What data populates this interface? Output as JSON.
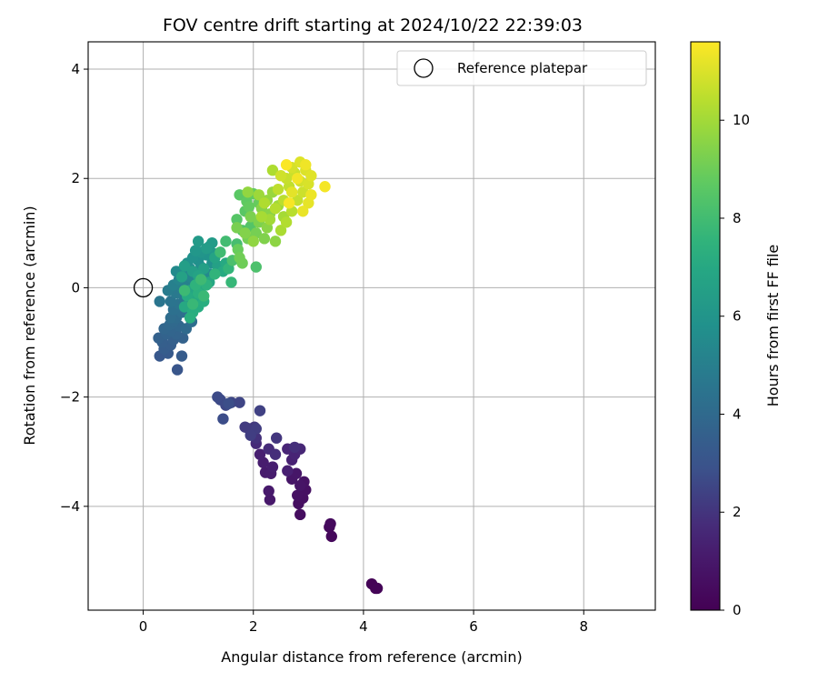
{
  "chart_data": {
    "type": "scatter",
    "title": "FOV centre drift starting at 2024/10/22 22:39:03",
    "xlabel": "Angular distance from reference (arcmin)",
    "ylabel": "Rotation from reference (arcmin)",
    "xlim": [
      -1.0,
      9.3
    ],
    "ylim": [
      -5.9,
      4.5
    ],
    "x_ticks": [
      0,
      2,
      4,
      6,
      8
    ],
    "y_ticks": [
      -4,
      -2,
      0,
      2,
      4
    ],
    "y_tick_labels": [
      "−4",
      "−2",
      "0",
      "2",
      "4"
    ],
    "grid": true,
    "legend": {
      "placement": "top-right",
      "entries": [
        {
          "label": "Reference platepar",
          "marker": "open-circle",
          "x": 0,
          "y": 0
        }
      ]
    },
    "colorbar": {
      "label": "Hours from first FF file",
      "colormap": "viridis",
      "range": [
        0,
        11.6
      ],
      "ticks": [
        0,
        2,
        4,
        6,
        8,
        10
      ]
    },
    "colors": {
      "viridis_low": "#440154",
      "viridis_mid": "#21918c",
      "viridis_high": "#fde725"
    },
    "series": [
      {
        "values": [
          {
            "x": 4.22,
            "y": -5.5,
            "t": 0.05
          },
          {
            "x": 4.15,
            "y": -5.42,
            "t": 0.1
          },
          {
            "x": 4.25,
            "y": -5.5,
            "t": 0.15
          },
          {
            "x": 3.42,
            "y": -4.55,
            "t": 0.3
          },
          {
            "x": 3.38,
            "y": -4.38,
            "t": 0.35
          },
          {
            "x": 3.4,
            "y": -4.32,
            "t": 0.4
          },
          {
            "x": 2.85,
            "y": -4.15,
            "t": 0.5
          },
          {
            "x": 2.82,
            "y": -3.95,
            "t": 0.55
          },
          {
            "x": 2.9,
            "y": -3.85,
            "t": 0.6
          },
          {
            "x": 2.95,
            "y": -3.7,
            "t": 0.65
          },
          {
            "x": 2.8,
            "y": -3.8,
            "t": 0.7
          },
          {
            "x": 2.92,
            "y": -3.55,
            "t": 0.75
          },
          {
            "x": 2.85,
            "y": -3.62,
            "t": 0.8
          },
          {
            "x": 2.7,
            "y": -3.5,
            "t": 0.85
          },
          {
            "x": 2.78,
            "y": -3.4,
            "t": 0.9
          },
          {
            "x": 2.3,
            "y": -3.88,
            "t": 1.0
          },
          {
            "x": 2.28,
            "y": -3.72,
            "t": 1.05
          },
          {
            "x": 2.22,
            "y": -3.38,
            "t": 1.1
          },
          {
            "x": 2.32,
            "y": -3.4,
            "t": 1.15
          },
          {
            "x": 2.18,
            "y": -3.2,
            "t": 1.2
          },
          {
            "x": 2.35,
            "y": -3.28,
            "t": 1.25
          },
          {
            "x": 2.12,
            "y": -3.05,
            "t": 1.3
          },
          {
            "x": 2.62,
            "y": -3.35,
            "t": 1.35
          },
          {
            "x": 2.7,
            "y": -3.15,
            "t": 1.4
          },
          {
            "x": 2.75,
            "y": -3.05,
            "t": 1.5
          },
          {
            "x": 2.62,
            "y": -2.95,
            "t": 1.55
          },
          {
            "x": 2.85,
            "y": -2.95,
            "t": 1.6
          },
          {
            "x": 2.05,
            "y": -2.85,
            "t": 1.7
          },
          {
            "x": 2.28,
            "y": -2.95,
            "t": 1.75
          },
          {
            "x": 2.4,
            "y": -3.05,
            "t": 1.8
          },
          {
            "x": 2.75,
            "y": -2.92,
            "t": 1.85
          },
          {
            "x": 2.05,
            "y": -2.75,
            "t": 1.9
          },
          {
            "x": 1.95,
            "y": -2.62,
            "t": 2.0
          },
          {
            "x": 2.42,
            "y": -2.75,
            "t": 2.05
          },
          {
            "x": 2.02,
            "y": -2.55,
            "t": 2.1
          },
          {
            "x": 1.92,
            "y": -2.58,
            "t": 2.15
          },
          {
            "x": 1.85,
            "y": -2.55,
            "t": 2.2
          },
          {
            "x": 2.05,
            "y": -2.58,
            "t": 2.25
          },
          {
            "x": 1.95,
            "y": -2.7,
            "t": 2.3
          },
          {
            "x": 2.12,
            "y": -2.25,
            "t": 2.4
          },
          {
            "x": 1.75,
            "y": -2.1,
            "t": 2.5
          },
          {
            "x": 1.6,
            "y": -2.1,
            "t": 2.55
          },
          {
            "x": 1.5,
            "y": -2.15,
            "t": 2.6
          },
          {
            "x": 1.4,
            "y": -2.05,
            "t": 2.65
          },
          {
            "x": 1.35,
            "y": -2.0,
            "t": 2.7
          },
          {
            "x": 1.45,
            "y": -2.4,
            "t": 2.75
          },
          {
            "x": 1.55,
            "y": -2.12,
            "t": 2.8
          },
          {
            "x": 0.62,
            "y": -1.5,
            "t": 3.1
          },
          {
            "x": 0.3,
            "y": -1.25,
            "t": 3.2
          },
          {
            "x": 0.45,
            "y": -1.2,
            "t": 3.3
          },
          {
            "x": 0.7,
            "y": -1.25,
            "t": 3.35
          },
          {
            "x": 0.38,
            "y": -1.12,
            "t": 3.4
          },
          {
            "x": 0.5,
            "y": -1.05,
            "t": 3.45
          },
          {
            "x": 0.35,
            "y": -1.0,
            "t": 3.5
          },
          {
            "x": 0.55,
            "y": -0.95,
            "t": 3.55
          },
          {
            "x": 0.28,
            "y": -0.92,
            "t": 3.6
          },
          {
            "x": 0.72,
            "y": -0.92,
            "t": 3.65
          },
          {
            "x": 0.42,
            "y": -0.85,
            "t": 3.7
          },
          {
            "x": 0.6,
            "y": -0.85,
            "t": 3.75
          },
          {
            "x": 0.5,
            "y": -0.78,
            "t": 3.8
          },
          {
            "x": 0.38,
            "y": -0.75,
            "t": 3.85
          },
          {
            "x": 0.65,
            "y": -0.7,
            "t": 3.9
          },
          {
            "x": 0.48,
            "y": -0.68,
            "t": 3.95
          },
          {
            "x": 0.55,
            "y": -0.62,
            "t": 4.0
          },
          {
            "x": 0.78,
            "y": -0.75,
            "t": 4.05
          },
          {
            "x": 0.6,
            "y": -0.55,
            "t": 4.1
          },
          {
            "x": 0.5,
            "y": -0.55,
            "t": 4.15
          },
          {
            "x": 0.88,
            "y": -0.62,
            "t": 4.2
          },
          {
            "x": 0.7,
            "y": -0.45,
            "t": 4.25
          },
          {
            "x": 0.55,
            "y": -0.4,
            "t": 4.3
          },
          {
            "x": 0.8,
            "y": -0.4,
            "t": 4.35
          },
          {
            "x": 0.65,
            "y": -0.3,
            "t": 4.45
          },
          {
            "x": 0.5,
            "y": -0.25,
            "t": 4.5
          },
          {
            "x": 0.3,
            "y": -0.25,
            "t": 4.55
          },
          {
            "x": 0.75,
            "y": -0.2,
            "t": 4.6
          },
          {
            "x": 0.6,
            "y": -0.1,
            "t": 4.7
          },
          {
            "x": 0.85,
            "y": -0.15,
            "t": 4.75
          },
          {
            "x": 0.45,
            "y": -0.05,
            "t": 4.8
          },
          {
            "x": 0.7,
            "y": 0.0,
            "t": 4.9
          },
          {
            "x": 0.9,
            "y": 0.02,
            "t": 5.0
          },
          {
            "x": 0.55,
            "y": 0.05,
            "t": 5.05
          },
          {
            "x": 0.78,
            "y": 0.1,
            "t": 5.1
          },
          {
            "x": 1.0,
            "y": 0.08,
            "t": 5.15
          },
          {
            "x": 0.65,
            "y": 0.15,
            "t": 5.2
          },
          {
            "x": 0.85,
            "y": 0.2,
            "t": 5.25
          },
          {
            "x": 1.1,
            "y": 0.18,
            "t": 5.3
          },
          {
            "x": 0.72,
            "y": 0.28,
            "t": 5.35
          },
          {
            "x": 0.95,
            "y": 0.28,
            "t": 5.4
          },
          {
            "x": 1.2,
            "y": 0.25,
            "t": 5.45
          },
          {
            "x": 0.6,
            "y": 0.3,
            "t": 5.5
          },
          {
            "x": 0.85,
            "y": 0.35,
            "t": 5.55
          },
          {
            "x": 1.05,
            "y": 0.38,
            "t": 5.6
          },
          {
            "x": 0.8,
            "y": 0.45,
            "t": 5.7
          },
          {
            "x": 1.0,
            "y": 0.5,
            "t": 5.75
          },
          {
            "x": 1.25,
            "y": 0.45,
            "t": 5.8
          },
          {
            "x": 0.9,
            "y": 0.55,
            "t": 5.85
          },
          {
            "x": 1.15,
            "y": 0.6,
            "t": 5.9
          },
          {
            "x": 1.05,
            "y": 0.65,
            "t": 6.0
          },
          {
            "x": 1.3,
            "y": 0.62,
            "t": 6.05
          },
          {
            "x": 0.95,
            "y": 0.68,
            "t": 6.1
          },
          {
            "x": 1.2,
            "y": 0.75,
            "t": 6.2
          },
          {
            "x": 1.0,
            "y": 0.85,
            "t": 6.25
          },
          {
            "x": 1.25,
            "y": 0.82,
            "t": 6.3
          },
          {
            "x": 1.15,
            "y": 0.72,
            "t": 6.35
          },
          {
            "x": 0.75,
            "y": 0.4,
            "t": 6.45
          },
          {
            "x": 0.9,
            "y": 0.3,
            "t": 6.5
          },
          {
            "x": 1.1,
            "y": 0.35,
            "t": 6.55
          },
          {
            "x": 1.35,
            "y": 0.4,
            "t": 6.6
          },
          {
            "x": 0.7,
            "y": 0.2,
            "t": 6.65
          },
          {
            "x": 1.0,
            "y": 0.22,
            "t": 6.7
          },
          {
            "x": 1.3,
            "y": 0.55,
            "t": 6.75
          },
          {
            "x": 0.85,
            "y": -0.05,
            "t": 6.8
          },
          {
            "x": 1.05,
            "y": 0.0,
            "t": 6.85
          },
          {
            "x": 1.2,
            "y": 0.1,
            "t": 6.9
          },
          {
            "x": 0.95,
            "y": -0.2,
            "t": 6.95
          },
          {
            "x": 0.75,
            "y": -0.35,
            "t": 7.0
          },
          {
            "x": 1.5,
            "y": 0.45,
            "t": 7.05
          },
          {
            "x": 1.45,
            "y": 0.3,
            "t": 7.1
          },
          {
            "x": 0.8,
            "y": -0.15,
            "t": 7.15
          },
          {
            "x": 1.0,
            "y": -0.35,
            "t": 7.2
          },
          {
            "x": 0.9,
            "y": -0.45,
            "t": 7.25
          },
          {
            "x": 1.1,
            "y": -0.25,
            "t": 7.3
          },
          {
            "x": 0.85,
            "y": -0.55,
            "t": 7.35
          },
          {
            "x": 1.0,
            "y": -0.1,
            "t": 7.4
          },
          {
            "x": 1.15,
            "y": 0.05,
            "t": 7.45
          },
          {
            "x": 0.95,
            "y": 0.05,
            "t": 7.5
          },
          {
            "x": 1.3,
            "y": 0.25,
            "t": 7.55
          },
          {
            "x": 1.55,
            "y": 0.35,
            "t": 7.6
          },
          {
            "x": 1.6,
            "y": 0.1,
            "t": 7.7
          },
          {
            "x": 0.9,
            "y": -0.3,
            "t": 7.75
          },
          {
            "x": 1.1,
            "y": -0.15,
            "t": 7.8
          },
          {
            "x": 0.75,
            "y": -0.05,
            "t": 7.85
          },
          {
            "x": 1.05,
            "y": 0.15,
            "t": 7.9
          },
          {
            "x": 1.4,
            "y": 0.65,
            "t": 7.95
          },
          {
            "x": 1.5,
            "y": 0.85,
            "t": 8.0
          },
          {
            "x": 1.7,
            "y": 0.8,
            "t": 8.1
          },
          {
            "x": 1.62,
            "y": 0.5,
            "t": 8.2
          },
          {
            "x": 2.05,
            "y": 0.38,
            "t": 8.25
          },
          {
            "x": 1.8,
            "y": 1.05,
            "t": 8.35
          },
          {
            "x": 1.95,
            "y": 1.12,
            "t": 8.45
          },
          {
            "x": 1.7,
            "y": 1.25,
            "t": 8.5
          },
          {
            "x": 1.85,
            "y": 1.4,
            "t": 8.55
          },
          {
            "x": 1.75,
            "y": 1.7,
            "t": 8.6
          },
          {
            "x": 1.88,
            "y": 1.58,
            "t": 8.7
          },
          {
            "x": 2.0,
            "y": 1.72,
            "t": 8.75
          },
          {
            "x": 1.92,
            "y": 1.48,
            "t": 8.8
          },
          {
            "x": 2.1,
            "y": 1.55,
            "t": 8.85
          },
          {
            "x": 1.72,
            "y": 0.7,
            "t": 8.9
          },
          {
            "x": 1.8,
            "y": 0.45,
            "t": 9.0
          },
          {
            "x": 1.75,
            "y": 0.55,
            "t": 9.05
          },
          {
            "x": 1.9,
            "y": 0.9,
            "t": 9.1
          },
          {
            "x": 2.05,
            "y": 1.0,
            "t": 9.15
          },
          {
            "x": 1.7,
            "y": 1.1,
            "t": 9.2
          },
          {
            "x": 1.95,
            "y": 1.3,
            "t": 9.25
          },
          {
            "x": 2.1,
            "y": 1.2,
            "t": 9.3
          },
          {
            "x": 2.2,
            "y": 0.9,
            "t": 9.35
          },
          {
            "x": 1.85,
            "y": 1.0,
            "t": 9.4
          },
          {
            "x": 2.15,
            "y": 1.45,
            "t": 9.45
          },
          {
            "x": 2.3,
            "y": 1.35,
            "t": 9.5
          },
          {
            "x": 2.25,
            "y": 1.1,
            "t": 9.55
          },
          {
            "x": 2.4,
            "y": 0.85,
            "t": 9.6
          },
          {
            "x": 2.0,
            "y": 0.85,
            "t": 9.65
          },
          {
            "x": 1.9,
            "y": 1.75,
            "t": 9.7
          },
          {
            "x": 2.25,
            "y": 1.6,
            "t": 9.75
          },
          {
            "x": 2.35,
            "y": 1.75,
            "t": 9.8
          },
          {
            "x": 2.1,
            "y": 1.7,
            "t": 9.9
          },
          {
            "x": 2.45,
            "y": 1.5,
            "t": 9.95
          },
          {
            "x": 2.3,
            "y": 1.25,
            "t": 10.0
          },
          {
            "x": 2.55,
            "y": 1.3,
            "t": 10.05
          },
          {
            "x": 2.15,
            "y": 1.3,
            "t": 10.1
          },
          {
            "x": 2.5,
            "y": 1.05,
            "t": 10.15
          },
          {
            "x": 2.35,
            "y": 2.15,
            "t": 10.2
          },
          {
            "x": 2.2,
            "y": 1.55,
            "t": 10.25
          },
          {
            "x": 2.6,
            "y": 1.2,
            "t": 10.3
          },
          {
            "x": 2.4,
            "y": 1.45,
            "t": 10.35
          },
          {
            "x": 2.7,
            "y": 1.4,
            "t": 10.4
          },
          {
            "x": 2.55,
            "y": 1.6,
            "t": 10.45
          },
          {
            "x": 2.45,
            "y": 1.8,
            "t": 10.5
          },
          {
            "x": 2.65,
            "y": 1.85,
            "t": 10.55
          },
          {
            "x": 2.8,
            "y": 1.6,
            "t": 10.6
          },
          {
            "x": 2.6,
            "y": 2.0,
            "t": 10.65
          },
          {
            "x": 2.75,
            "y": 2.1,
            "t": 10.7
          },
          {
            "x": 2.9,
            "y": 1.75,
            "t": 10.75
          },
          {
            "x": 2.5,
            "y": 2.05,
            "t": 10.8
          },
          {
            "x": 2.85,
            "y": 1.95,
            "t": 10.85
          },
          {
            "x": 2.7,
            "y": 2.2,
            "t": 10.9
          },
          {
            "x": 3.0,
            "y": 1.9,
            "t": 10.95
          },
          {
            "x": 2.95,
            "y": 2.15,
            "t": 11.0
          },
          {
            "x": 2.85,
            "y": 2.3,
            "t": 11.05
          },
          {
            "x": 3.05,
            "y": 2.05,
            "t": 11.1
          },
          {
            "x": 2.7,
            "y": 1.75,
            "t": 11.15
          },
          {
            "x": 3.0,
            "y": 1.55,
            "t": 11.2
          },
          {
            "x": 2.9,
            "y": 1.4,
            "t": 11.25
          },
          {
            "x": 3.05,
            "y": 1.7,
            "t": 11.3
          },
          {
            "x": 2.95,
            "y": 2.25,
            "t": 11.35
          },
          {
            "x": 2.8,
            "y": 2.0,
            "t": 11.4
          },
          {
            "x": 3.3,
            "y": 1.85,
            "t": 11.45
          },
          {
            "x": 2.65,
            "y": 1.55,
            "t": 11.5
          },
          {
            "x": 2.6,
            "y": 2.25,
            "t": 11.55
          }
        ]
      }
    ]
  }
}
